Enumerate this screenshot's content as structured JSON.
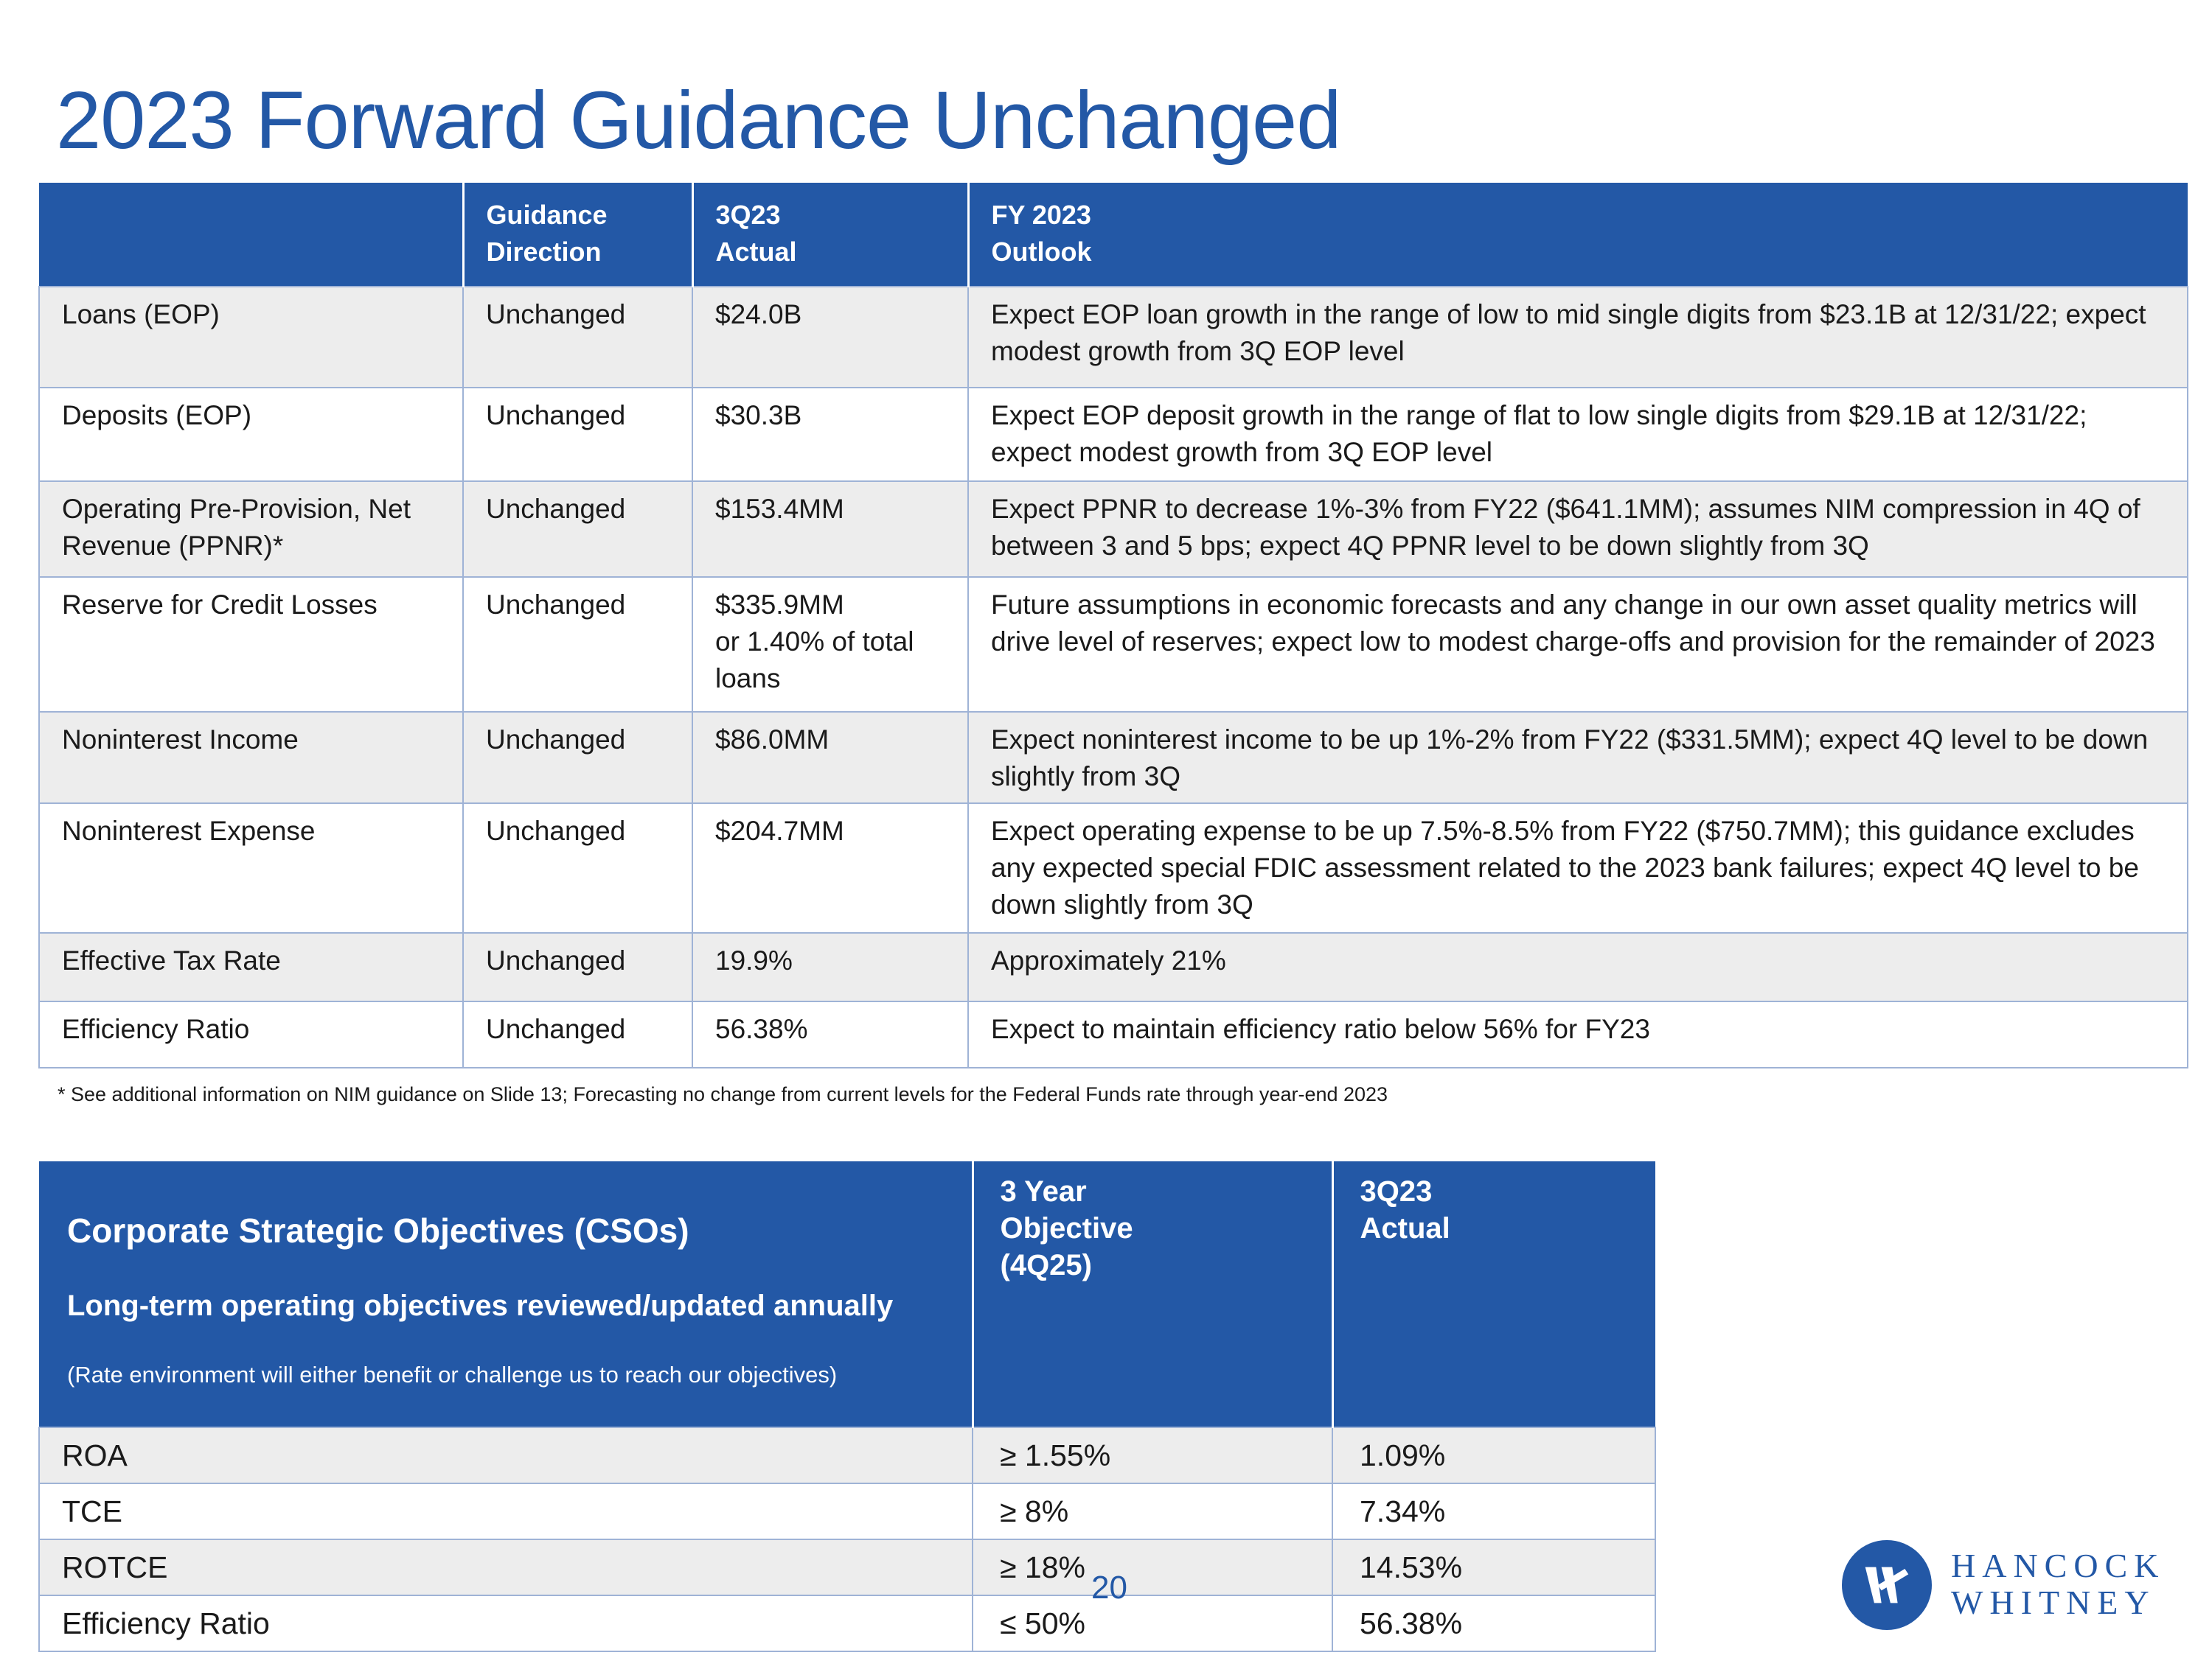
{
  "title": "2023 Forward Guidance Unchanged",
  "guidance": {
    "headers": [
      "",
      "Guidance\nDirection",
      "3Q23\nActual",
      "FY 2023\nOutlook"
    ],
    "rows": [
      {
        "metric": "Loans (EOP)",
        "direction": "Unchanged",
        "actual": "$24.0B",
        "outlook": "Expect EOP loan growth in the range of low to mid single digits from $23.1B at 12/31/22; expect modest growth from 3Q EOP level"
      },
      {
        "metric": "Deposits (EOP)",
        "direction": "Unchanged",
        "actual": "$30.3B",
        "outlook": "Expect EOP deposit growth in the range of flat to low single digits from $29.1B at 12/31/22; expect modest growth from 3Q EOP level"
      },
      {
        "metric": "Operating Pre-Provision, Net Revenue (PPNR)*",
        "direction": "Unchanged",
        "actual": "$153.4MM",
        "outlook": "Expect PPNR to decrease 1%-3% from FY22 ($641.1MM); assumes NIM compression in 4Q of between 3 and 5 bps; expect 4Q PPNR level to be down slightly from 3Q"
      },
      {
        "metric": "Reserve for Credit Losses",
        "direction": "Unchanged",
        "actual": "$335.9MM\nor 1.40% of total loans",
        "outlook": "Future assumptions in economic forecasts and any change in our own asset quality metrics will drive level of reserves; expect low to modest charge-offs and provision for the remainder of 2023"
      },
      {
        "metric": "Noninterest Income",
        "direction": "Unchanged",
        "actual": "$86.0MM",
        "outlook": "Expect noninterest income to be up 1%-2% from FY22 ($331.5MM); expect 4Q level to be down slightly from 3Q"
      },
      {
        "metric": "Noninterest Expense",
        "direction": "Unchanged",
        "actual": "$204.7MM",
        "outlook": "Expect operating expense to be up 7.5%-8.5% from FY22 ($750.7MM); this guidance excludes any expected special FDIC assessment related to the 2023 bank failures; expect 4Q level to be down slightly from 3Q"
      },
      {
        "metric": "Effective Tax Rate",
        "direction": "Unchanged",
        "actual": "19.9%",
        "outlook": "Approximately 21%"
      },
      {
        "metric": "Efficiency Ratio",
        "direction": "Unchanged",
        "actual": "56.38%",
        "outlook": "Expect to maintain efficiency ratio below 56% for FY23"
      }
    ]
  },
  "footnote": "* See additional information on NIM guidance on Slide 13; Forecasting  no change from current levels for the Federal Funds rate through year-end 2023",
  "csos": {
    "title": "Corporate Strategic Objectives (CSOs)",
    "subtitle": "Long-term operating objectives reviewed/updated annually",
    "note": "(Rate environment will either benefit or challenge us to reach our objectives)",
    "col_objective": "3 Year\nObjective\n(4Q25)",
    "col_actual": "3Q23\nActual",
    "rows": [
      {
        "metric": "ROA",
        "objective": "≥ 1.55%",
        "actual": "1.09%"
      },
      {
        "metric": "TCE",
        "objective": "≥ 8%",
        "actual": "7.34%"
      },
      {
        "metric": "ROTCE",
        "objective": "≥ 18%",
        "actual": "14.53%"
      },
      {
        "metric": "Efficiency Ratio",
        "objective": "≤ 50%",
        "actual": "56.38%"
      }
    ]
  },
  "page_number": "20",
  "logo": {
    "line1": "HANCOCK",
    "line2": "WHITNEY"
  },
  "colors": {
    "brand_blue": "#2358a6",
    "row_shade": "#ededed",
    "border": "#9fb3d6"
  }
}
